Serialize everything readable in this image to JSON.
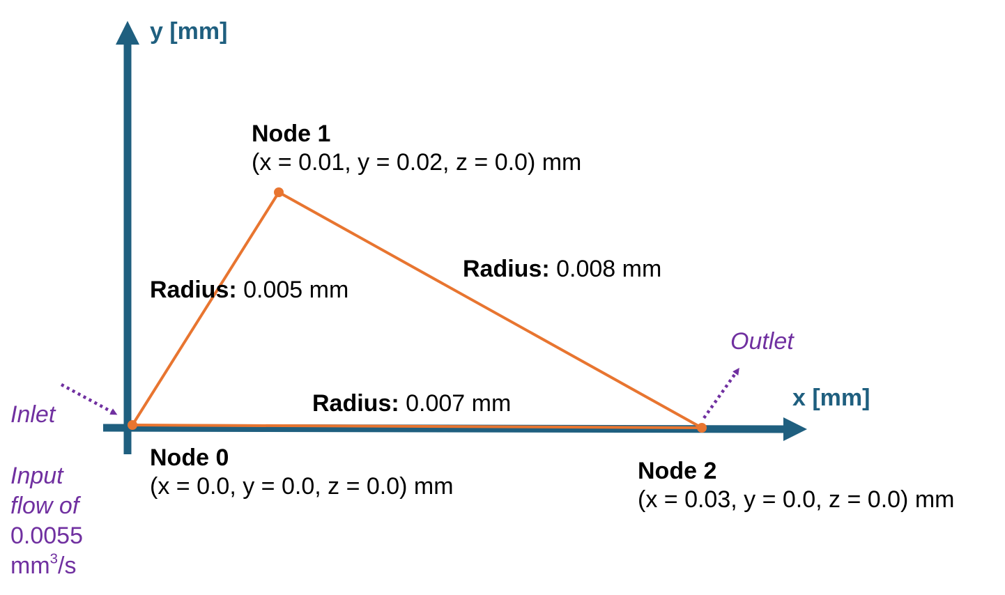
{
  "colors": {
    "axis": "#1f5f7f",
    "edge": "#e87530",
    "annotation": "#7030a0",
    "text": "#000000"
  },
  "axes": {
    "x_label": "x [mm]",
    "y_label": "y [mm]"
  },
  "nodes": [
    {
      "title": "Node 0",
      "coords": "(x = 0.0, y = 0.0, z = 0.0) mm"
    },
    {
      "title": "Node 1",
      "coords": "(x = 0.01, y = 0.02, z = 0.0) mm"
    },
    {
      "title": "Node 2",
      "coords": "(x = 0.03, y = 0.0, z = 0.0) mm"
    }
  ],
  "edges": [
    {
      "from": 0,
      "to": 1,
      "radius_label": "Radius:",
      "radius_value": " 0.005 mm"
    },
    {
      "from": 1,
      "to": 2,
      "radius_label": "Radius:",
      "radius_value": " 0.008 mm"
    },
    {
      "from": 0,
      "to": 2,
      "radius_label": "Radius:",
      "radius_value": " 0.007 mm"
    }
  ],
  "annotations": {
    "inlet": "Inlet",
    "outlet": "Outlet",
    "input_flow_line1": "Input",
    "input_flow_line2": "flow of",
    "input_flow_line3": "0.0055",
    "input_flow_unit": "mm",
    "input_flow_exp": "3",
    "input_flow_rest": "/s"
  }
}
